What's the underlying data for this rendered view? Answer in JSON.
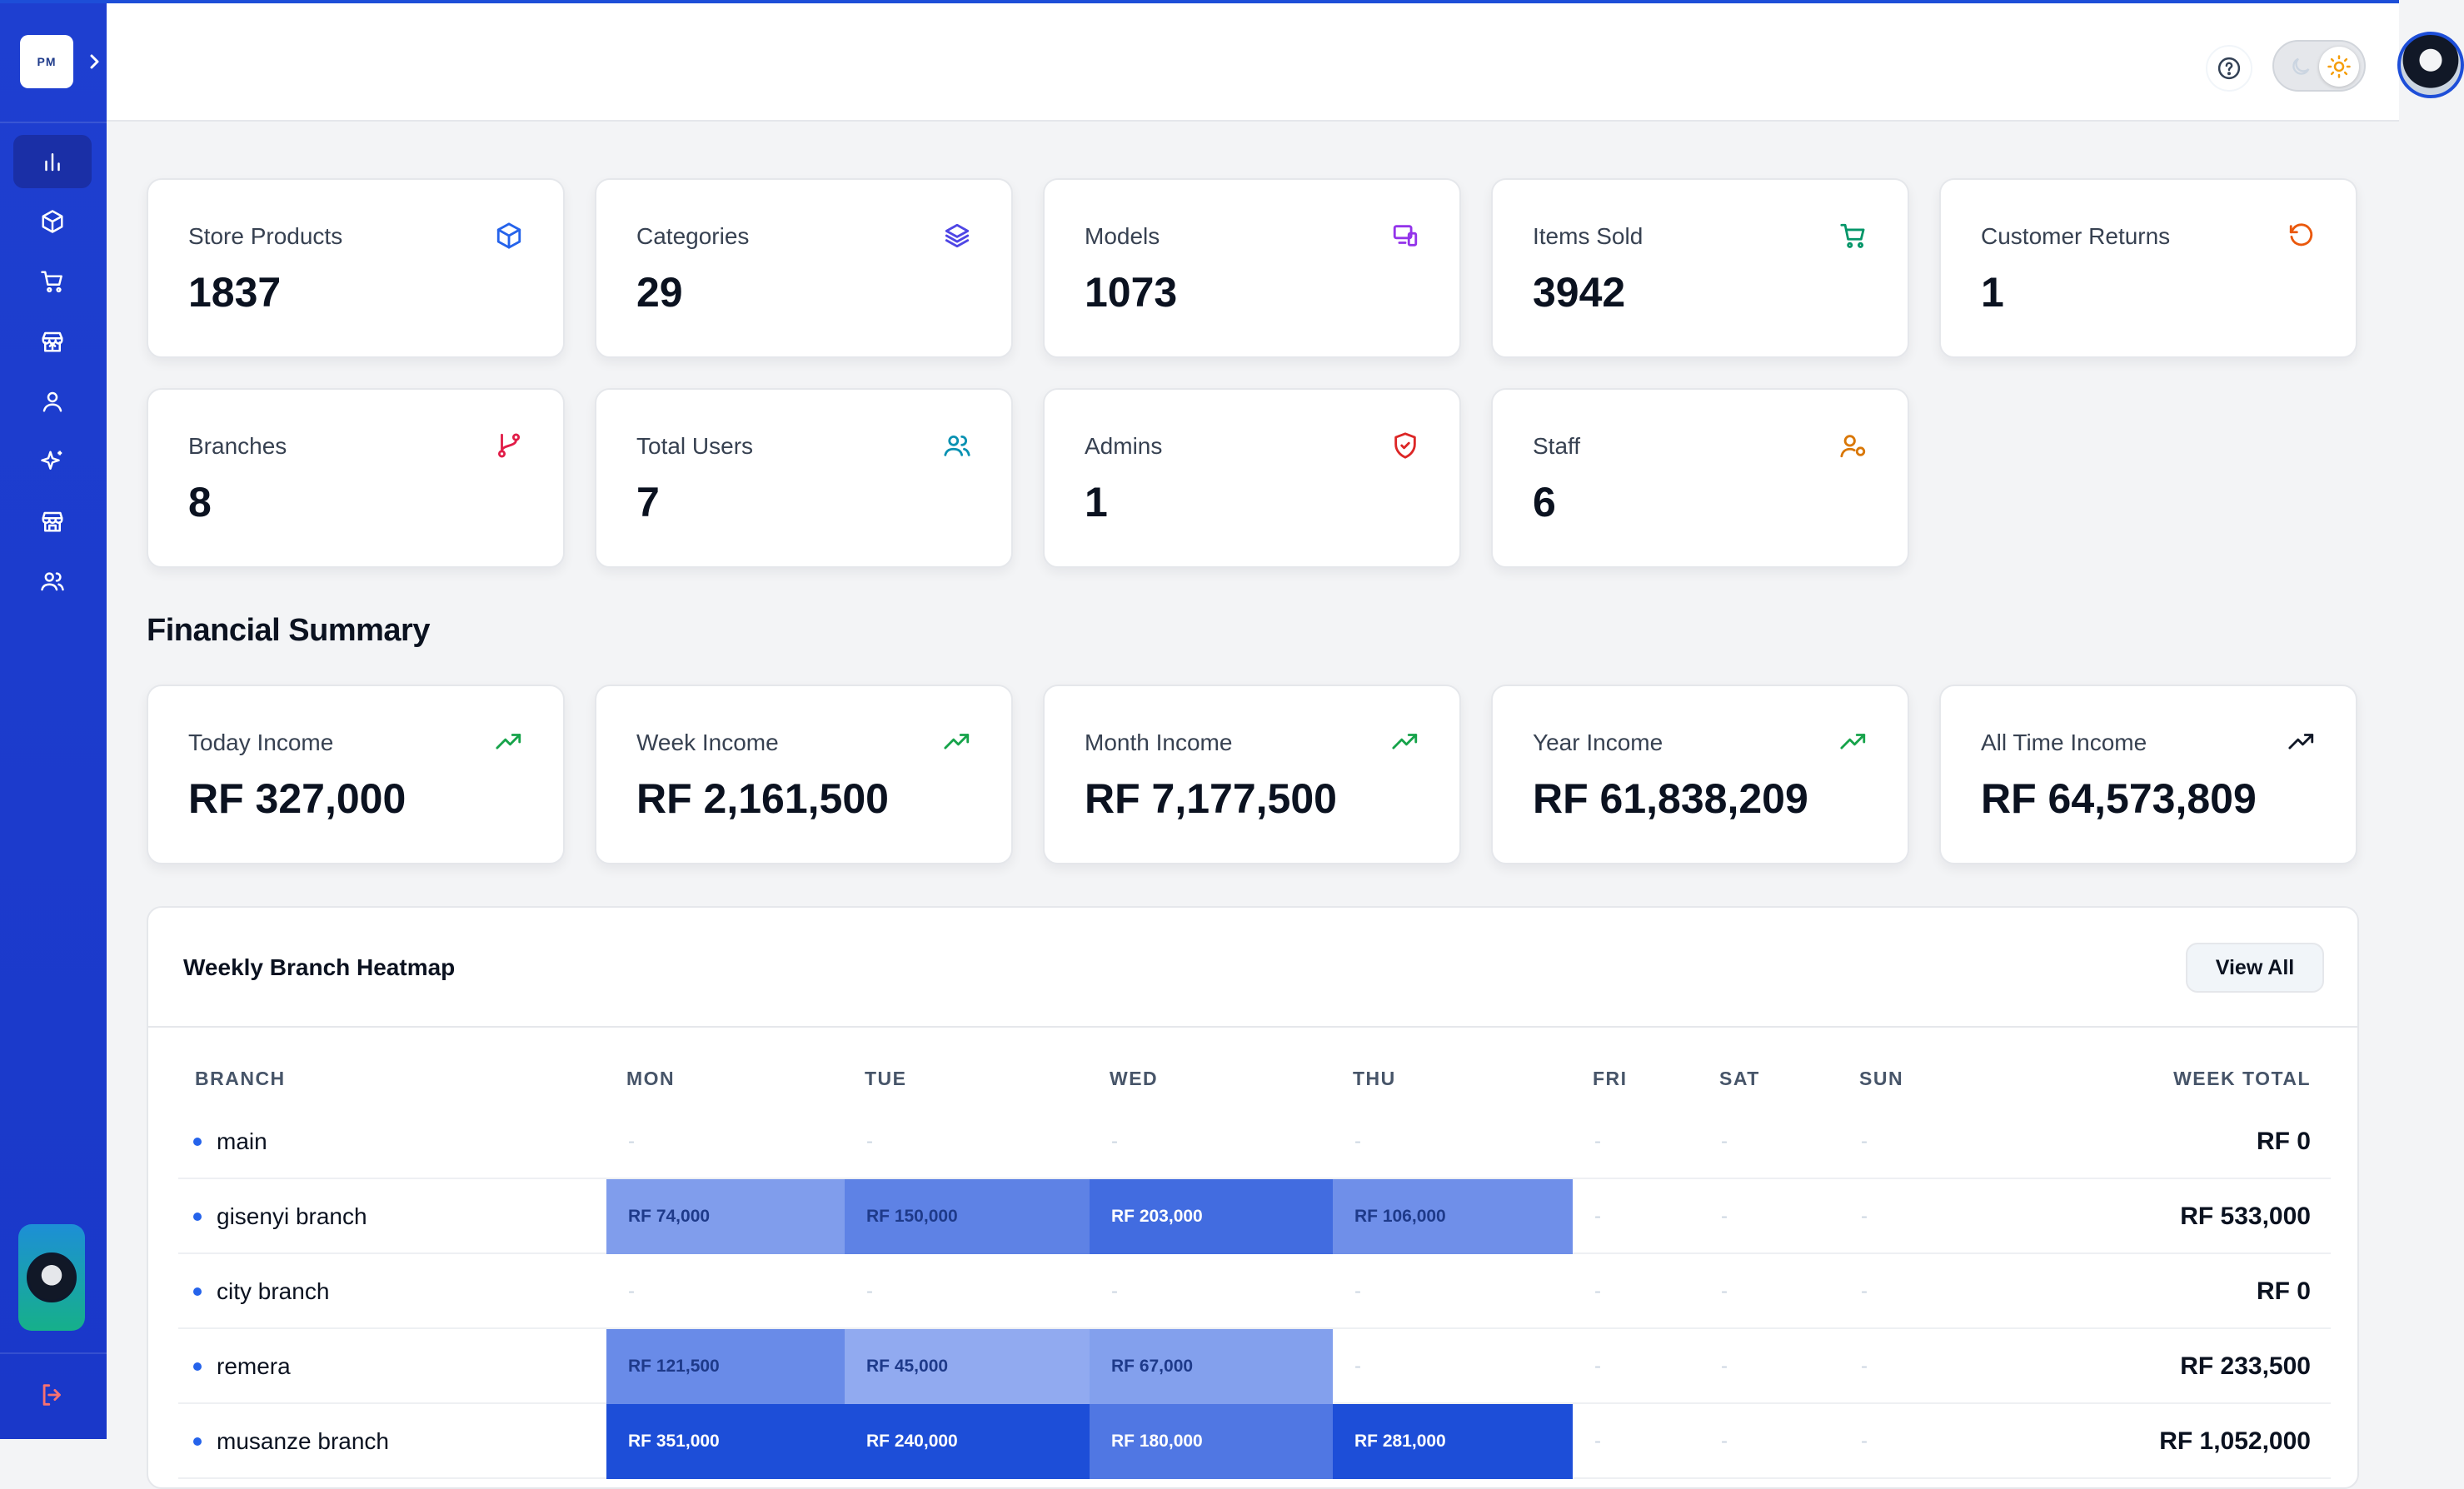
{
  "app": {
    "logo_text": "PM"
  },
  "sidebar": {
    "items": [
      {
        "name": "dashboard",
        "icon": "bar-chart-icon",
        "active": true
      },
      {
        "name": "products",
        "icon": "box-icon"
      },
      {
        "name": "sales",
        "icon": "cart-icon"
      },
      {
        "name": "store",
        "icon": "store-upload-icon"
      },
      {
        "name": "users",
        "icon": "user-icon"
      },
      {
        "name": "ai",
        "icon": "sparkles-icon"
      },
      {
        "name": "branches",
        "icon": "storefront-icon"
      },
      {
        "name": "team",
        "icon": "users-icon"
      }
    ],
    "logout_icon": "logout-icon"
  },
  "stats": [
    {
      "label": "Store Products",
      "value": "1837",
      "icon": "box-icon",
      "color": "#2563eb"
    },
    {
      "label": "Categories",
      "value": "29",
      "icon": "layers-icon",
      "color": "#4f46e5"
    },
    {
      "label": "Models",
      "value": "1073",
      "icon": "devices-icon",
      "color": "#9333ea"
    },
    {
      "label": "Items Sold",
      "value": "3942",
      "icon": "cart-icon",
      "color": "#059669"
    },
    {
      "label": "Customer Returns",
      "value": "1",
      "icon": "rotate-ccw-icon",
      "color": "#ea580c"
    },
    {
      "label": "Branches",
      "value": "8",
      "icon": "git-branch-icon",
      "color": "#e11d48"
    },
    {
      "label": "Total Users",
      "value": "7",
      "icon": "users-icon",
      "color": "#0891b2"
    },
    {
      "label": "Admins",
      "value": "1",
      "icon": "shield-icon",
      "color": "#dc2626"
    },
    {
      "label": "Staff",
      "value": "6",
      "icon": "user-cog-icon",
      "color": "#d97706"
    }
  ],
  "financial": {
    "title": "Financial Summary",
    "cards": [
      {
        "label": "Today Income",
        "value": "RF 327,000",
        "color": "#16a34a"
      },
      {
        "label": "Week Income",
        "value": "RF 2,161,500",
        "color": "#16a34a"
      },
      {
        "label": "Month Income",
        "value": "RF 7,177,500",
        "color": "#16a34a"
      },
      {
        "label": "Year Income",
        "value": "RF 61,838,209",
        "color": "#16a34a"
      },
      {
        "label": "All Time Income",
        "value": "RF 64,573,809",
        "color": "#111827"
      }
    ]
  },
  "heatmap": {
    "title": "Weekly Branch Heatmap",
    "view_all": "View All",
    "columns": [
      "BRANCH",
      "MON",
      "TUE",
      "WED",
      "THU",
      "FRI",
      "SAT",
      "SUN",
      "WEEK TOTAL"
    ],
    "empty": "-",
    "rows": [
      {
        "branch": "main",
        "days": [
          "",
          "",
          "",
          "",
          "",
          "",
          ""
        ],
        "intensity": [
          0,
          0,
          0,
          0,
          0,
          0,
          0
        ],
        "total": "RF 0"
      },
      {
        "branch": "gisenyi branch",
        "days": [
          "RF 74,000",
          "RF 150,000",
          "RF 203,000",
          "RF 106,000",
          "",
          "",
          ""
        ],
        "intensity": [
          0.42,
          0.62,
          0.78,
          0.52,
          0,
          0,
          0
        ],
        "total": "RF 533,000"
      },
      {
        "branch": "city branch",
        "days": [
          "",
          "",
          "",
          "",
          "",
          "",
          ""
        ],
        "intensity": [
          0,
          0,
          0,
          0,
          0,
          0,
          0
        ],
        "total": "RF 0"
      },
      {
        "branch": "remera",
        "days": [
          "RF 121,500",
          "RF 45,000",
          "RF 67,000",
          "",
          "",
          "",
          ""
        ],
        "intensity": [
          0.55,
          0.32,
          0.4,
          0,
          0,
          0,
          0
        ],
        "total": "RF 233,500"
      },
      {
        "branch": "musanze branch",
        "days": [
          "RF 351,000",
          "RF 240,000",
          "RF 180,000",
          "RF 281,000",
          "",
          "",
          ""
        ],
        "intensity": [
          1.0,
          1.0,
          0.7,
          1.0,
          0,
          0,
          0
        ],
        "total": "RF 1,052,000"
      }
    ]
  }
}
